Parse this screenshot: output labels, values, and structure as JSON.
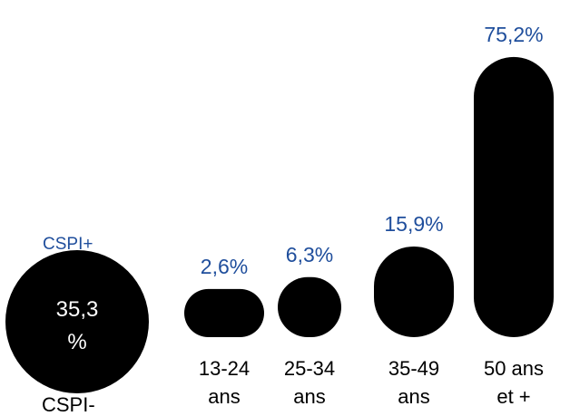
{
  "chart_data": {
    "type": "bar",
    "categories": [
      [
        "13-24",
        "ans"
      ],
      [
        "25-34",
        "ans"
      ],
      [
        "35-49",
        "ans"
      ],
      [
        "50 ans",
        "et +"
      ]
    ],
    "values": [
      2.6,
      6.3,
      15.9,
      75.2
    ],
    "value_labels": [
      "2,6%",
      "6,3%",
      "15,9%",
      "75,2%"
    ],
    "bar_color": "#000000",
    "value_label_color": "#1f4e9c",
    "ylim": [
      0,
      80
    ]
  },
  "summary": {
    "header_label": "CSPI+",
    "value_line1": "35,3",
    "value_line2": "%",
    "footer_label": "CSPI-"
  }
}
